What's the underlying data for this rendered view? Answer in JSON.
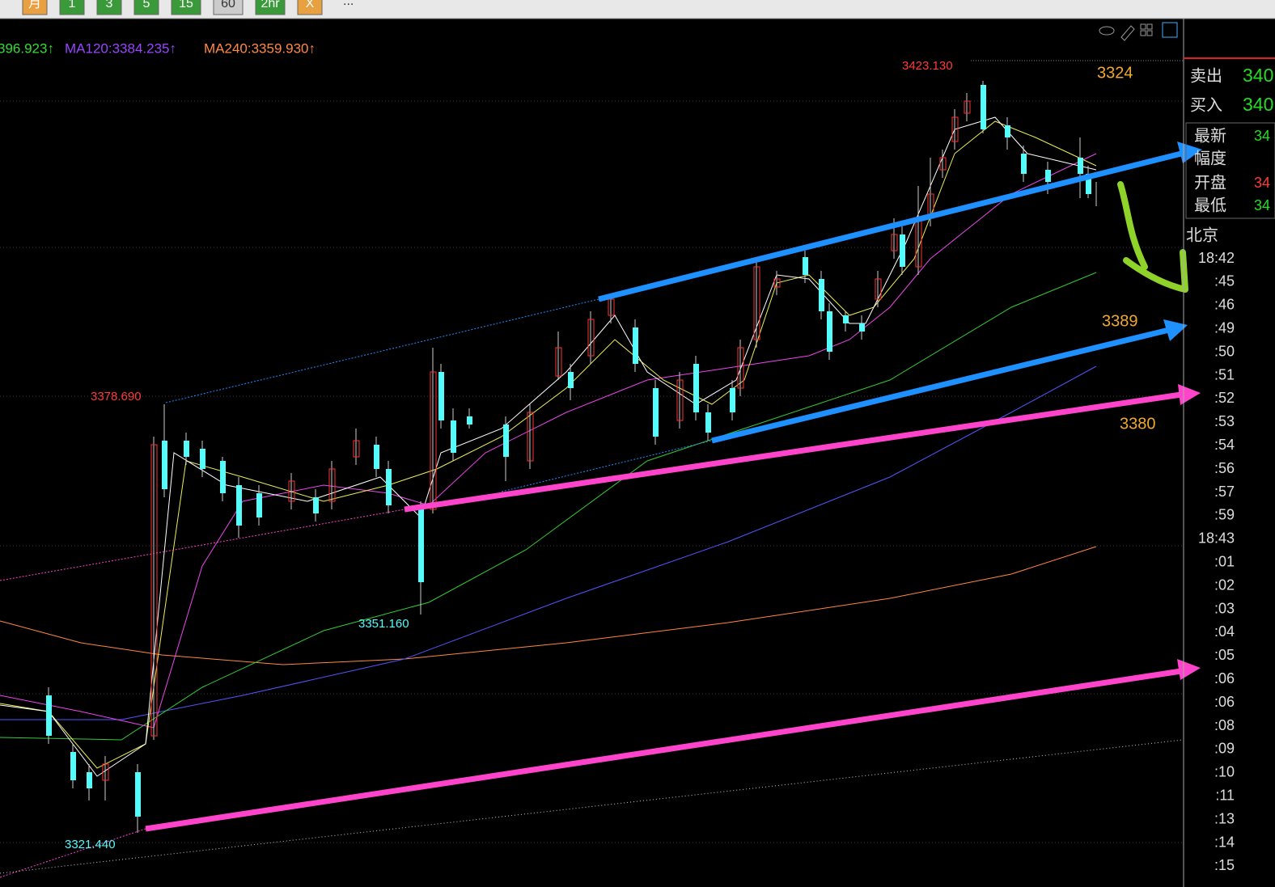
{
  "toolbar": {
    "buttons": [
      "月",
      "1",
      "3",
      "5",
      "15",
      "60",
      "2hr",
      "X"
    ],
    "more": "..."
  },
  "ma_legend": [
    "396.923↑",
    "MA120:3384.235↑",
    "MA240:3359.930↑"
  ],
  "price_labels": {
    "high": "3423.130",
    "left_high": "3378.690",
    "mid_low": "3351.160",
    "low": "3321.440"
  },
  "annotations": [
    "3324",
    "3389",
    "3380"
  ],
  "quote_panel": [
    {
      "label": "卖出",
      "value": "340"
    },
    {
      "label": "买入",
      "value": "340"
    },
    {
      "label": "最新",
      "value": "34"
    },
    {
      "label": "幅度"
    },
    {
      "label": "开盘",
      "value": "34"
    },
    {
      "label": "最低",
      "value": "34"
    }
  ],
  "time_panel": {
    "title": "北京",
    "times": [
      "18:42",
      ":45",
      ":46",
      ":49",
      ":50",
      ":51",
      ":52",
      ":53",
      ":54",
      ":56",
      ":57",
      ":59",
      "18:43",
      ":01",
      ":02",
      ":03",
      ":04",
      ":05",
      ":06",
      ":06",
      ":08",
      ":09",
      ":10",
      ":11",
      ":13",
      ":14",
      ":15"
    ]
  }
}
